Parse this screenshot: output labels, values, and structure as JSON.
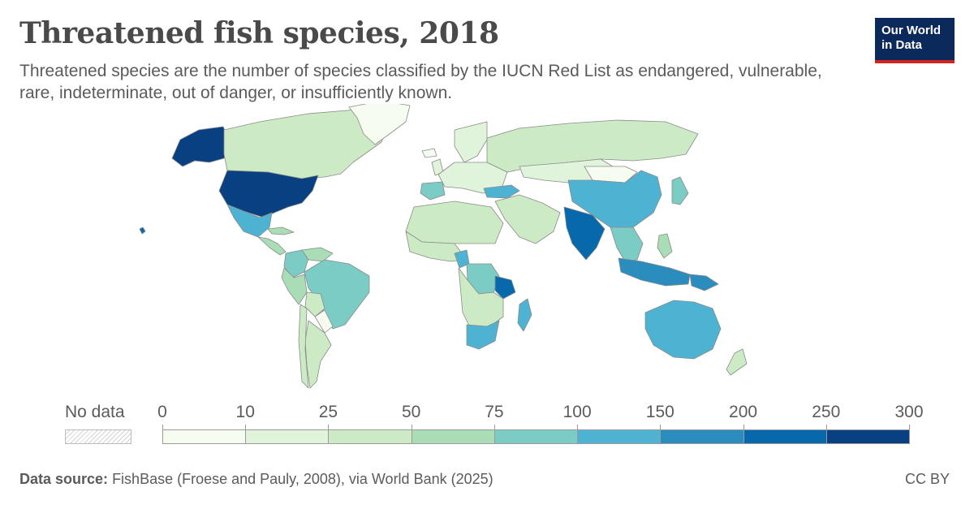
{
  "header": {
    "title": "Threatened fish species, 2018",
    "subtitle": "Threatened species are the number of species classified by the IUCN Red List as endangered, vulnerable, rare, indeterminate, out of danger, or insufficiently known.",
    "logo_line1": "Our World",
    "logo_line2": "in Data"
  },
  "legend": {
    "no_data_label": "No data",
    "bins": [
      {
        "from": 0,
        "to": 10,
        "color": "#f7fcf0"
      },
      {
        "from": 10,
        "to": 25,
        "color": "#e0f3db"
      },
      {
        "from": 25,
        "to": 50,
        "color": "#ccebc5"
      },
      {
        "from": 50,
        "to": 75,
        "color": "#a8ddb5"
      },
      {
        "from": 75,
        "to": 100,
        "color": "#7bccc4"
      },
      {
        "from": 100,
        "to": 150,
        "color": "#4eb3d3"
      },
      {
        "from": 150,
        "to": 200,
        "color": "#2b8cbe"
      },
      {
        "from": 200,
        "to": 250,
        "color": "#0868ac"
      },
      {
        "from": 250,
        "to": 300,
        "color": "#084081"
      }
    ],
    "tick_labels": [
      "0",
      "10",
      "25",
      "50",
      "75",
      "100",
      "150",
      "200",
      "250",
      "300"
    ]
  },
  "map": {
    "regions": [
      {
        "name": "Alaska",
        "bin": 8
      },
      {
        "name": "Canada",
        "bin": 2
      },
      {
        "name": "Greenland",
        "bin": 0
      },
      {
        "name": "United States",
        "bin": 8
      },
      {
        "name": "Mexico",
        "bin": 5
      },
      {
        "name": "Central America",
        "bin": 3
      },
      {
        "name": "Cuba",
        "bin": 3
      },
      {
        "name": "Hawaii",
        "bin": 7
      },
      {
        "name": "Colombia",
        "bin": 4
      },
      {
        "name": "Venezuela",
        "bin": 3
      },
      {
        "name": "Brazil",
        "bin": 4
      },
      {
        "name": "Peru",
        "bin": 3
      },
      {
        "name": "Bolivia",
        "bin": 2
      },
      {
        "name": "Paraguay",
        "bin": 0
      },
      {
        "name": "Argentina",
        "bin": 2
      },
      {
        "name": "Chile",
        "bin": 2
      },
      {
        "name": "Iceland",
        "bin": 0
      },
      {
        "name": "Scandinavia",
        "bin": 1
      },
      {
        "name": "United Kingdom",
        "bin": 1
      },
      {
        "name": "Europe",
        "bin": 1
      },
      {
        "name": "Spain",
        "bin": 4
      },
      {
        "name": "Russia",
        "bin": 2
      },
      {
        "name": "Turkey",
        "bin": 5
      },
      {
        "name": "Middle East",
        "bin": 2
      },
      {
        "name": "North Africa",
        "bin": 2
      },
      {
        "name": "West Africa",
        "bin": 2
      },
      {
        "name": "Cameroon",
        "bin": 5
      },
      {
        "name": "DR Congo",
        "bin": 4
      },
      {
        "name": "Tanzania",
        "bin": 7
      },
      {
        "name": "Southern Africa",
        "bin": 2
      },
      {
        "name": "South Africa",
        "bin": 5
      },
      {
        "name": "Madagascar",
        "bin": 5
      },
      {
        "name": "Central Asia",
        "bin": 1
      },
      {
        "name": "Mongolia",
        "bin": 0
      },
      {
        "name": "China",
        "bin": 5
      },
      {
        "name": "India",
        "bin": 7
      },
      {
        "name": "Southeast Asia",
        "bin": 4
      },
      {
        "name": "Japan",
        "bin": 4
      },
      {
        "name": "Philippines",
        "bin": 3
      },
      {
        "name": "Indonesia",
        "bin": 6
      },
      {
        "name": "Papua New Guinea",
        "bin": 6
      },
      {
        "name": "Australia",
        "bin": 5
      },
      {
        "name": "New Zealand",
        "bin": 2
      }
    ]
  },
  "footer": {
    "source_label": "Data source:",
    "source_text": "FishBase (Froese and Pauly, 2008), via World Bank (2025)",
    "license": "CC BY"
  }
}
